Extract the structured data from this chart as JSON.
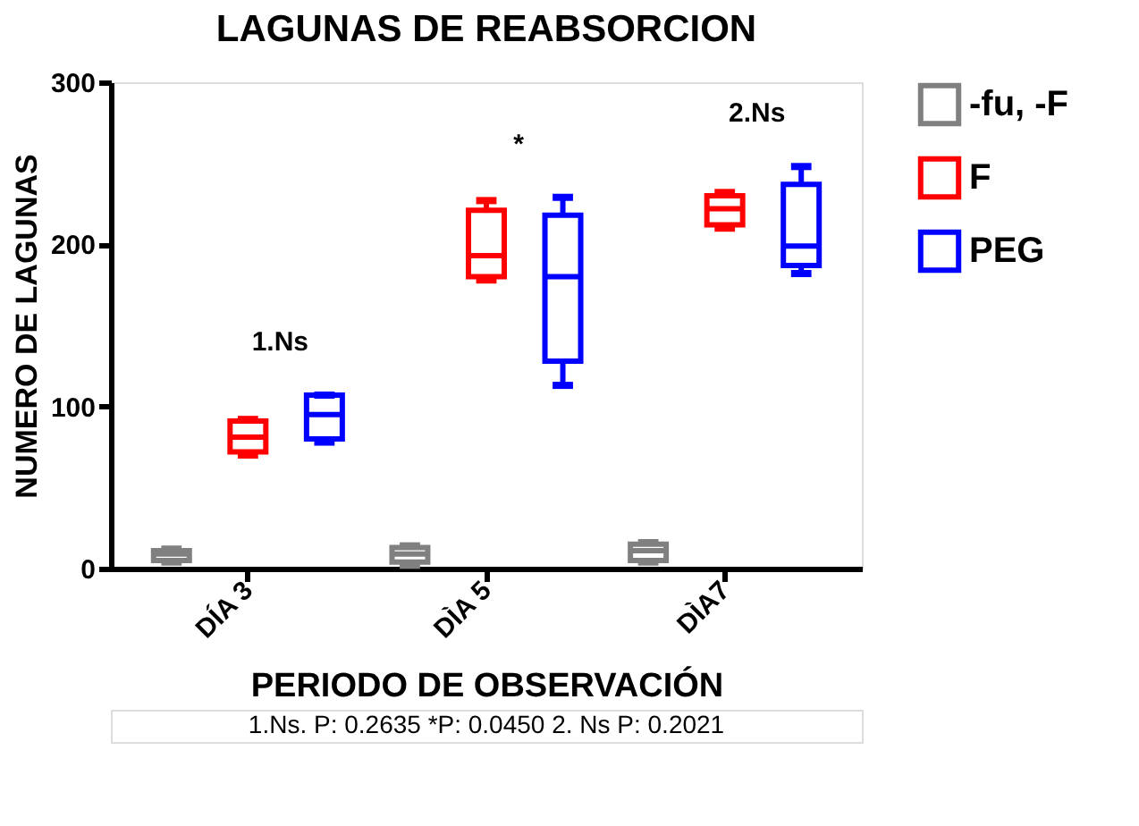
{
  "chart_data": {
    "type": "box",
    "title": "LAGUNAS DE REABSORCION",
    "xlabel": "PERIODO DE OBSERVACIÓN",
    "ylabel": "NUMERO DE LAGUNAS",
    "categories": [
      "DÍA 3",
      "DÌA 5",
      "DÌA7"
    ],
    "series": [
      {
        "name": "-fu, -F",
        "color": "#808080",
        "boxes": [
          {
            "low": 4,
            "q1": 5,
            "median": 9,
            "q3": 11,
            "high": 12
          },
          {
            "low": 2,
            "q1": 4,
            "median": 9,
            "q3": 13,
            "high": 14
          },
          {
            "low": 4,
            "q1": 5,
            "median": 11,
            "q3": 15,
            "high": 16
          }
        ]
      },
      {
        "name": "F",
        "color": "#ff0000",
        "boxes": [
          {
            "low": 70,
            "q1": 72,
            "median": 81,
            "q3": 91,
            "high": 92
          },
          {
            "low": 178,
            "q1": 180,
            "median": 193,
            "q3": 221,
            "high": 227
          },
          {
            "low": 210,
            "q1": 212,
            "median": 222,
            "q3": 230,
            "high": 232
          }
        ]
      },
      {
        "name": "PEG",
        "color": "#0000ff",
        "boxes": [
          {
            "low": 78,
            "q1": 80,
            "median": 95,
            "q3": 107,
            "high": 107
          },
          {
            "low": 113,
            "q1": 128,
            "median": 180,
            "q3": 218,
            "high": 229
          },
          {
            "low": 182,
            "q1": 187,
            "median": 199,
            "q3": 237,
            "high": 248
          }
        ]
      }
    ],
    "ylim": [
      0,
      300
    ],
    "yticks": [
      0,
      100,
      200,
      300
    ],
    "grid": false,
    "legend": "top right",
    "annotations": [
      "1.Ns",
      "*",
      "2.Ns",
      "1.Ns. P: 0.2635     *P: 0.0450     2. Ns P: 0.2021"
    ]
  }
}
